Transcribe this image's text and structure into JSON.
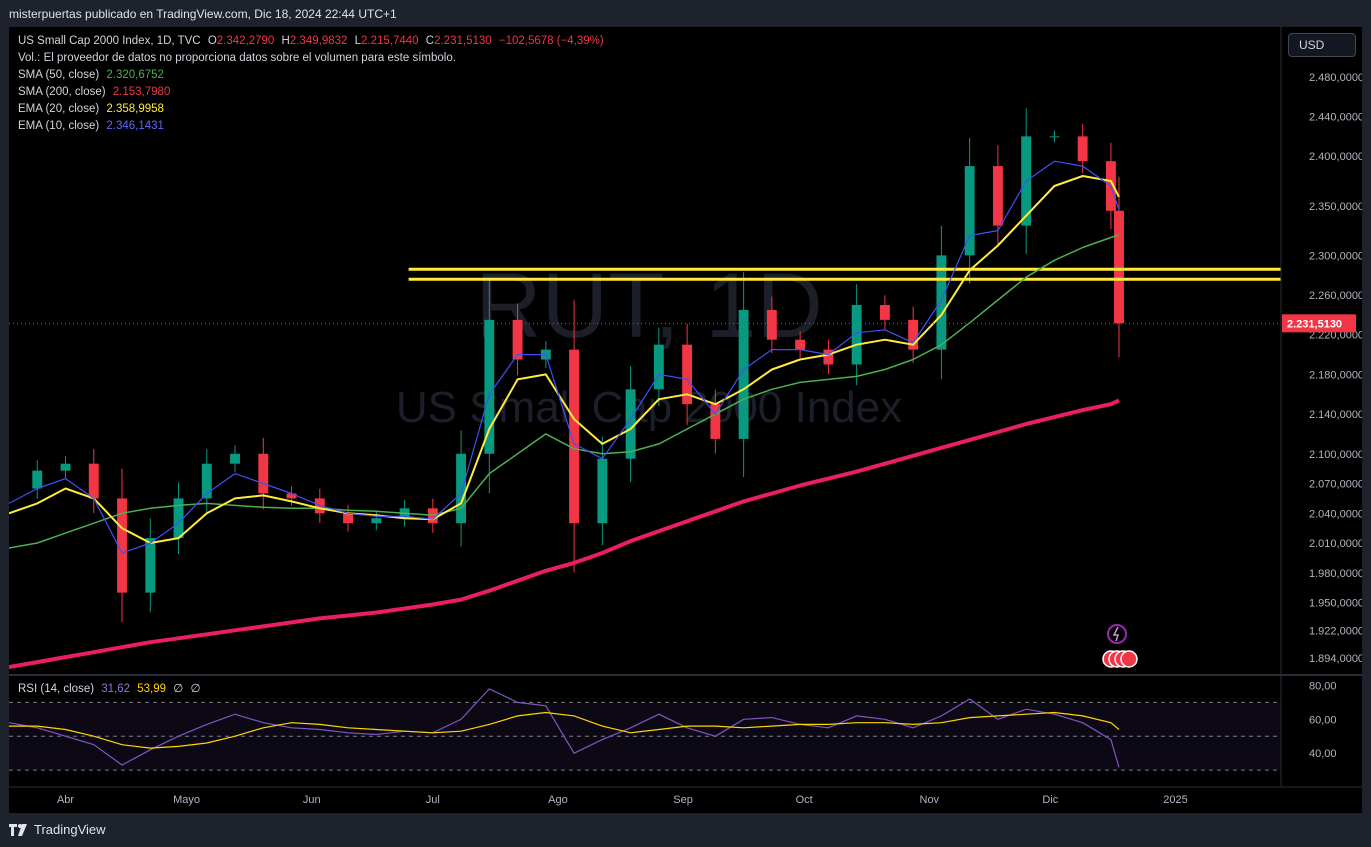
{
  "header": {
    "publisher": "misterpuertas publicado en TradingView.com, Dic 18, 2024 22:44 UTC+1"
  },
  "legend": {
    "title": "US Small Cap 2000 Index, 1D, TVC",
    "open_label": "O",
    "open": "2.342,2790",
    "high_label": "H",
    "high": "2.349,9832",
    "low_label": "L",
    "low": "2.215,7440",
    "close_label": "C",
    "close": "2.231,5130",
    "change": "−102,5678 (−4,39%)",
    "volume_note": "Vol.: El proveedor de datos no proporciona datos sobre el volumen para este símbolo.",
    "indicators": [
      {
        "label": "SMA (50, close)",
        "value": "2.320,6752",
        "color": "#4caf50"
      },
      {
        "label": "SMA (200, close)",
        "value": "2.153,7980",
        "color": "#f23645"
      },
      {
        "label": "EMA (20, close)",
        "value": "2.358,9958",
        "color": "#ffeb3b"
      },
      {
        "label": "EMA (10, close)",
        "value": "2.346,1431",
        "color": "#3f51f5"
      }
    ]
  },
  "currency_button": "USD",
  "watermark": {
    "symbol": "RUT, 1D",
    "name": "US Small Cap 2000 Index"
  },
  "price_label": "2.231,5130",
  "rsi": {
    "label": "RSI (14, close)",
    "value": "31,62",
    "ma_value": "53,99",
    "extra1": "∅",
    "extra2": "∅",
    "ticks": [
      "80,00",
      "60,00",
      "40,00"
    ]
  },
  "footer": {
    "brand": "TradingView"
  },
  "colors": {
    "up": "#089981",
    "down": "#f23645",
    "sma50": "#4caf50",
    "sma200": "#e91e63",
    "ema20": "#ffeb3b",
    "ema10": "#3f51f5",
    "level": "#ffeb3b",
    "rsi": "#7e57c2",
    "rsi_ma": "#ffd600"
  },
  "chart_data": {
    "type": "line",
    "title": "US Small Cap 2000 Index, 1D, TVC",
    "x": [
      "2024-03-18",
      "2024-03-25",
      "2024-04-01",
      "2024-04-08",
      "2024-04-15",
      "2024-04-22",
      "2024-04-29",
      "2024-05-06",
      "2024-05-13",
      "2024-05-20",
      "2024-05-27",
      "2024-06-03",
      "2024-06-10",
      "2024-06-17",
      "2024-06-24",
      "2024-07-01",
      "2024-07-08",
      "2024-07-15",
      "2024-07-22",
      "2024-07-29",
      "2024-08-05",
      "2024-08-12",
      "2024-08-19",
      "2024-08-26",
      "2024-09-02",
      "2024-09-09",
      "2024-09-16",
      "2024-09-23",
      "2024-09-30",
      "2024-10-07",
      "2024-10-14",
      "2024-10-21",
      "2024-10-28",
      "2024-11-04",
      "2024-11-11",
      "2024-11-18",
      "2024-11-25",
      "2024-12-02",
      "2024-12-09",
      "2024-12-16",
      "2024-12-18"
    ],
    "x_ticks": [
      "Abr",
      "Mayo",
      "Jun",
      "Jul",
      "Ago",
      "Sep",
      "Oct",
      "Nov",
      "Dic",
      "2025"
    ],
    "y_ticks": [
      "2.480,0000",
      "2.440,0000",
      "2.400,0000",
      "2.350,0000",
      "2.300,0000",
      "2.260,0000",
      "2.220,0000",
      "2.180,0000",
      "2.140,0000",
      "2.100,0000",
      "2.070,0000",
      "2.040,0000",
      "2.010,0000",
      "1.980,0000",
      "1.950,0000",
      "1.922,0000",
      "1.894,0000"
    ],
    "series": [
      {
        "name": "US Small Cap 2000 Index",
        "values": [
          2065,
          2083,
          2090,
          2055,
          1960,
          2015,
          2055,
          2090,
          2100,
          2060,
          2055,
          2040,
          2030,
          2035,
          2045,
          2030,
          2100,
          2235,
          2195,
          2205,
          2030,
          2095,
          2165,
          2210,
          2150,
          2115,
          2245,
          2215,
          2205,
          2190,
          2250,
          2235,
          2205,
          2300,
          2390,
          2330,
          2420,
          2420,
          2395,
          2345,
          2231.5
        ]
      },
      {
        "name": "SMA (50, close)",
        "values": [
          2005,
          2010,
          2020,
          2030,
          2040,
          2045,
          2048,
          2050,
          2048,
          2046,
          2045,
          2045,
          2043,
          2042,
          2040,
          2038,
          2045,
          2080,
          2100,
          2120,
          2105,
          2100,
          2102,
          2110,
          2125,
          2140,
          2155,
          2165,
          2172,
          2175,
          2178,
          2185,
          2195,
          2210,
          2232,
          2255,
          2278,
          2295,
          2308,
          2318,
          2320.7
        ]
      },
      {
        "name": "SMA (200, close)",
        "values": [
          1885,
          1890,
          1895,
          1900,
          1905,
          1910,
          1914,
          1918,
          1922,
          1926,
          1930,
          1934,
          1937,
          1940,
          1944,
          1948,
          1953,
          1962,
          1972,
          1982,
          1990,
          2000,
          2012,
          2022,
          2032,
          2042,
          2052,
          2060,
          2068,
          2075,
          2082,
          2090,
          2098,
          2106,
          2114,
          2122,
          2130,
          2137,
          2144,
          2150,
          2153.8
        ]
      },
      {
        "name": "EMA (20, close)",
        "values": [
          2040,
          2050,
          2065,
          2055,
          2025,
          2010,
          2015,
          2040,
          2055,
          2058,
          2052,
          2045,
          2040,
          2038,
          2035,
          2034,
          2050,
          2125,
          2175,
          2180,
          2135,
          2110,
          2125,
          2155,
          2160,
          2150,
          2165,
          2185,
          2195,
          2200,
          2210,
          2215,
          2210,
          2240,
          2285,
          2310,
          2340,
          2370,
          2380,
          2375,
          2359
        ]
      },
      {
        "name": "EMA (10, close)",
        "values": [
          2050,
          2065,
          2075,
          2055,
          2000,
          2010,
          2030,
          2060,
          2080,
          2070,
          2060,
          2048,
          2040,
          2037,
          2037,
          2034,
          2060,
          2160,
          2200,
          2200,
          2110,
          2095,
          2135,
          2180,
          2175,
          2140,
          2185,
          2205,
          2205,
          2200,
          2222,
          2225,
          2212,
          2255,
          2320,
          2325,
          2375,
          2395,
          2390,
          2370,
          2346
        ]
      }
    ],
    "horizontal_levels": [
      2286,
      2276
    ],
    "ylim": [
      1880,
      2500
    ],
    "rsi_series": [
      {
        "name": "RSI (14, close)",
        "values": [
          58,
          55,
          50,
          45,
          33,
          42,
          50,
          57,
          63,
          58,
          55,
          54,
          52,
          51,
          53,
          52,
          60,
          78,
          70,
          68,
          40,
          48,
          55,
          63,
          55,
          50,
          60,
          61,
          57,
          55,
          62,
          60,
          55,
          62,
          72,
          60,
          66,
          63,
          58,
          48,
          31.62
        ]
      },
      {
        "name": "RSI MA",
        "values": [
          56,
          56,
          54,
          50,
          45,
          43,
          44,
          46,
          50,
          55,
          58,
          57,
          55,
          54,
          53,
          52,
          53,
          57,
          62,
          64,
          62,
          56,
          52,
          54,
          56,
          56,
          55,
          56,
          57,
          57,
          58,
          58,
          57,
          58,
          61,
          62,
          63,
          64,
          62,
          58,
          53.99
        ]
      }
    ],
    "rsi_ylim": [
      20,
      85
    ]
  }
}
